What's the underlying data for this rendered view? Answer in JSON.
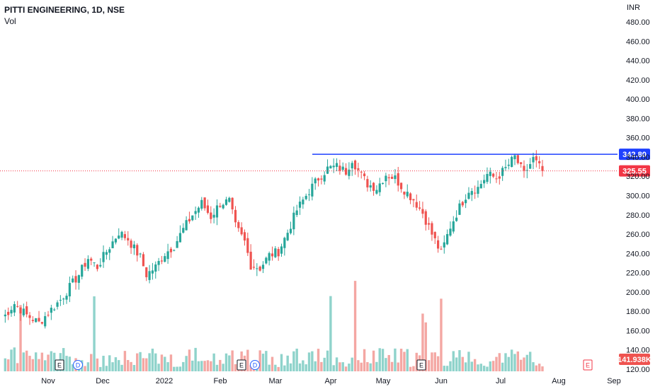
{
  "header": {
    "symbol_line": "PITTI ENGINEERING, 1D, NSE",
    "indicator": "Vol"
  },
  "colors": {
    "up": "#26a69a",
    "down": "#ef5350",
    "resistance": "#1e40ff",
    "current": "#f23645",
    "vol_up": "#8fd3cb",
    "vol_down": "#f4a7a3"
  },
  "price_axis": {
    "currency": "INR",
    "ticks": [
      "480.00",
      "460.00",
      "440.00",
      "420.00",
      "400.00",
      "380.00",
      "360.00",
      "340.00",
      "320.00",
      "300.00",
      "280.00",
      "260.00",
      "240.00",
      "220.00",
      "200.00",
      "180.00",
      "160.00",
      "140.00",
      "120.00"
    ]
  },
  "time_axis": {
    "ticks": [
      "Nov",
      "Dec",
      "2022",
      "Feb",
      "Mar",
      "Apr",
      "May",
      "Jun",
      "Jul",
      "Aug",
      "Sep"
    ]
  },
  "events": [
    {
      "label": "E",
      "kind": "earnings",
      "month": "Nov"
    },
    {
      "label": "D",
      "kind": "dividend",
      "month": "Nov"
    },
    {
      "label": "E",
      "kind": "earnings",
      "month": "Feb"
    },
    {
      "label": "D",
      "kind": "dividend",
      "month": "Feb"
    },
    {
      "label": "E",
      "kind": "earnings",
      "month": "May"
    },
    {
      "label": "E",
      "kind": "earnings",
      "month": "Aug",
      "future": true
    }
  ],
  "chart_data": {
    "type": "candlestick",
    "title": "PITTI ENGINEERING, 1D, NSE",
    "ylabel": "INR",
    "ylim": [
      117,
      488
    ],
    "resistance_level": 342.8,
    "resistance_label": "342.80",
    "last_price": 325.55,
    "last_price_label": "325.55",
    "last_volume_label": "141.938K",
    "price_path": [
      [
        0,
        172
      ],
      [
        4,
        188
      ],
      [
        8,
        176
      ],
      [
        12,
        168
      ],
      [
        16,
        182
      ],
      [
        19,
        192
      ],
      [
        22,
        205
      ],
      [
        25,
        218
      ],
      [
        28,
        235
      ],
      [
        31,
        226
      ],
      [
        34,
        242
      ],
      [
        38,
        262
      ],
      [
        41,
        255
      ],
      [
        43,
        245
      ],
      [
        45,
        236
      ],
      [
        47,
        218
      ],
      [
        50,
        226
      ],
      [
        53,
        240
      ],
      [
        56,
        248
      ],
      [
        59,
        265
      ],
      [
        62,
        280
      ],
      [
        65,
        292
      ],
      [
        68,
        278
      ],
      [
        71,
        292
      ],
      [
        74,
        294
      ],
      [
        76,
        268
      ],
      [
        79,
        252
      ],
      [
        81,
        228
      ],
      [
        84,
        225
      ],
      [
        87,
        238
      ],
      [
        90,
        242
      ],
      [
        93,
        262
      ],
      [
        96,
        285
      ],
      [
        100,
        305
      ],
      [
        103,
        318
      ],
      [
        106,
        328
      ],
      [
        109,
        330
      ],
      [
        112,
        325
      ],
      [
        114,
        338
      ],
      [
        116,
        326
      ],
      [
        119,
        312
      ],
      [
        122,
        308
      ],
      [
        125,
        322
      ],
      [
        128,
        318
      ],
      [
        131,
        306
      ],
      [
        134,
        296
      ],
      [
        137,
        282
      ],
      [
        140,
        260
      ],
      [
        143,
        240
      ],
      [
        146,
        268
      ],
      [
        149,
        288
      ],
      [
        152,
        306
      ],
      [
        155,
        308
      ],
      [
        158,
        322
      ],
      [
        161,
        318
      ],
      [
        164,
        328
      ],
      [
        167,
        340
      ],
      [
        170,
        322
      ],
      [
        173,
        338
      ],
      [
        176,
        325
      ]
    ],
    "volume_note": "daily volume histogram; last bar labeled 141.938K"
  }
}
